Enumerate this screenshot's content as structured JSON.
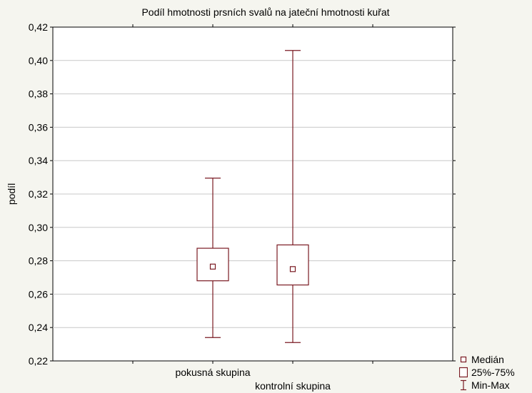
{
  "chart_data": {
    "type": "boxplot",
    "title": "Podíl hmotnosti prsních svalů na jateční hmotnosti kuřat",
    "xlabel": "",
    "ylabel": "podíl",
    "ylim": [
      0.22,
      0.42
    ],
    "y_ticks": [
      0.22,
      0.24,
      0.26,
      0.28,
      0.3,
      0.32,
      0.34,
      0.36,
      0.38,
      0.4,
      0.42
    ],
    "y_tick_labels": [
      "0,22",
      "0,24",
      "0,26",
      "0,28",
      "0,30",
      "0,32",
      "0,34",
      "0,36",
      "0,38",
      "0,40",
      "0,42"
    ],
    "grid": true,
    "legend_position": "bottom-right",
    "categories": [
      "pokusná skupina",
      "kontrolní skupina"
    ],
    "groups": [
      {
        "category": "pokusná skupina",
        "min": 0.234,
        "q1": 0.268,
        "median": 0.2765,
        "q3": 0.2875,
        "max": 0.3295
      },
      {
        "category": "kontrolní skupina",
        "min": 0.231,
        "q1": 0.2655,
        "median": 0.275,
        "q3": 0.2895,
        "max": 0.406
      }
    ],
    "legend": [
      {
        "symbol": "median",
        "label": "Medián"
      },
      {
        "symbol": "box",
        "label": "25%-75%"
      },
      {
        "symbol": "whisker",
        "label": "Min-Max"
      }
    ],
    "colors": {
      "series": "#7a1a22",
      "background": "#f5f5ef",
      "plot_background": "#ffffff",
      "grid": "#c8c8c8"
    }
  }
}
